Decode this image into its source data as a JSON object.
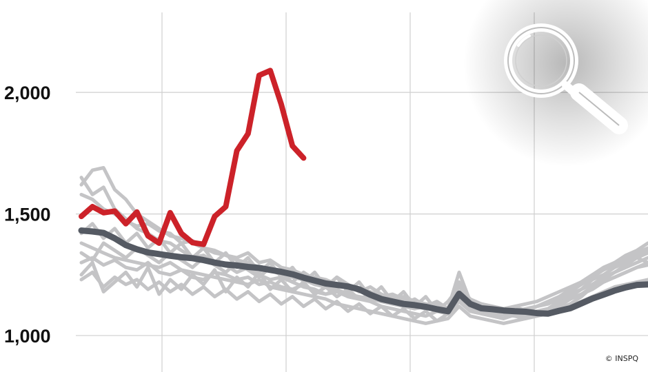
{
  "chart_data": {
    "type": "line",
    "title": "",
    "xlabel": "",
    "ylabel": "",
    "ylim": [
      850,
      2380
    ],
    "yticks": [
      1000,
      1500,
      2000
    ],
    "ytick_labels": [
      "1,000",
      "1,500",
      "2,000"
    ],
    "grid": {
      "horizontal": true,
      "vertical": true
    },
    "x_divisions": 5,
    "x_points": 52,
    "legend": "none",
    "credit": "© INSPQ",
    "icon": "magnifier-icon",
    "colors": {
      "current": "#cc2229",
      "average": "#555a63",
      "history": "#c4c4c6",
      "grid": "#cfcfcf"
    },
    "series": [
      {
        "role": "average",
        "values": [
          1432,
          1428,
          1422,
          1400,
          1372,
          1355,
          1342,
          1335,
          1328,
          1322,
          1318,
          1310,
          1300,
          1292,
          1288,
          1282,
          1278,
          1270,
          1262,
          1252,
          1238,
          1226,
          1214,
          1208,
          1202,
          1190,
          1168,
          1150,
          1140,
          1130,
          1125,
          1118,
          1108,
          1100,
          1172,
          1130,
          1112,
          1108,
          1103,
          1100,
          1098,
          1092,
          1090,
          1102,
          1112,
          1132,
          1152,
          1168,
          1185,
          1198,
          1208,
          1210
        ]
      },
      {
        "role": "current",
        "values": [
          1490,
          1530,
          1505,
          1512,
          1460,
          1508,
          1410,
          1380,
          1505,
          1420,
          1382,
          1375,
          1490,
          1530,
          1760,
          1830,
          2070,
          2090,
          1950,
          1780,
          1730
        ]
      },
      {
        "role": "history",
        "values": [
          1650,
          1580,
          1610,
          1520,
          1480,
          1440,
          1420,
          1390,
          1380,
          1350,
          1320,
          1330,
          1300,
          1290,
          1260,
          1280,
          1250,
          1230,
          1240,
          1220,
          1200,
          1190,
          1170,
          1180,
          1160,
          1150,
          1140,
          1120,
          1110,
          1100,
          1090,
          1080,
          1100,
          1090,
          1160,
          1110,
          1090,
          1080,
          1070,
          1085,
          1090,
          1080,
          1095,
          1110,
          1130,
          1160,
          1200,
          1230,
          1260,
          1290,
          1320,
          1340
        ]
      },
      {
        "role": "history",
        "values": [
          1620,
          1680,
          1690,
          1600,
          1560,
          1500,
          1470,
          1440,
          1410,
          1400,
          1380,
          1360,
          1340,
          1330,
          1310,
          1300,
          1280,
          1270,
          1250,
          1240,
          1230,
          1210,
          1200,
          1190,
          1170,
          1160,
          1150,
          1140,
          1130,
          1120,
          1110,
          1120,
          1100,
          1090,
          1220,
          1120,
          1100,
          1090,
          1085,
          1080,
          1070,
          1090,
          1100,
          1120,
          1150,
          1170,
          1190,
          1220,
          1240,
          1260,
          1280,
          1300
        ]
      },
      {
        "role": "history",
        "values": [
          1580,
          1560,
          1520,
          1500,
          1470,
          1450,
          1460,
          1430,
          1420,
          1380,
          1390,
          1360,
          1350,
          1330,
          1320,
          1340,
          1300,
          1310,
          1280,
          1270,
          1250,
          1240,
          1230,
          1210,
          1200,
          1190,
          1180,
          1160,
          1170,
          1150,
          1140,
          1130,
          1120,
          1110,
          1180,
          1140,
          1120,
          1110,
          1100,
          1095,
          1090,
          1100,
          1110,
          1140,
          1160,
          1190,
          1230,
          1250,
          1280,
          1300,
          1320,
          1300
        ]
      },
      {
        "role": "history",
        "values": [
          1380,
          1360,
          1340,
          1320,
          1310,
          1300,
          1290,
          1280,
          1300,
          1270,
          1260,
          1250,
          1240,
          1230,
          1220,
          1210,
          1230,
          1200,
          1190,
          1180,
          1170,
          1160,
          1150,
          1130,
          1120,
          1110,
          1100,
          1090,
          1080,
          1070,
          1060,
          1050,
          1060,
          1070,
          1120,
          1080,
          1070,
          1060,
          1050,
          1060,
          1070,
          1080,
          1090,
          1100,
          1120,
          1140,
          1160,
          1180,
          1200,
          1210,
          1220,
          1230
        ]
      },
      {
        "role": "history",
        "values": [
          1300,
          1320,
          1290,
          1310,
          1280,
          1270,
          1300,
          1260,
          1250,
          1270,
          1240,
          1230,
          1260,
          1250,
          1230,
          1240,
          1210,
          1220,
          1200,
          1190,
          1210,
          1180,
          1170,
          1190,
          1160,
          1150,
          1170,
          1140,
          1130,
          1150,
          1120,
          1110,
          1130,
          1100,
          1150,
          1120,
          1110,
          1100,
          1090,
          1110,
          1100,
          1120,
          1130,
          1150,
          1170,
          1190,
          1210,
          1240,
          1260,
          1280,
          1300,
          1320
        ]
      },
      {
        "role": "history",
        "values": [
          1250,
          1300,
          1180,
          1220,
          1260,
          1200,
          1280,
          1170,
          1230,
          1190,
          1250,
          1210,
          1270,
          1180,
          1240,
          1200,
          1260,
          1190,
          1230,
          1180,
          1220,
          1170,
          1200,
          1160,
          1190,
          1150,
          1170,
          1140,
          1160,
          1130,
          1150,
          1120,
          1140,
          1110,
          1210,
          1130,
          1120,
          1110,
          1100,
          1115,
          1105,
          1120,
          1130,
          1150,
          1180,
          1210,
          1240,
          1270,
          1290,
          1310,
          1330,
          1350
        ]
      },
      {
        "role": "history",
        "values": [
          1340,
          1310,
          1380,
          1350,
          1320,
          1360,
          1330,
          1300,
          1340,
          1310,
          1280,
          1320,
          1290,
          1260,
          1300,
          1270,
          1240,
          1280,
          1250,
          1220,
          1260,
          1230,
          1200,
          1240,
          1210,
          1180,
          1200,
          1170,
          1150,
          1160,
          1140,
          1130,
          1120,
          1110,
          1260,
          1140,
          1130,
          1120,
          1110,
          1100,
          1110,
          1120,
          1140,
          1160,
          1190,
          1220,
          1250,
          1270,
          1300,
          1320,
          1340,
          1360
        ]
      },
      {
        "role": "history",
        "values": [
          1230,
          1260,
          1200,
          1240,
          1210,
          1230,
          1190,
          1220,
          1180,
          1210,
          1170,
          1200,
          1160,
          1190,
          1150,
          1180,
          1140,
          1170,
          1130,
          1160,
          1120,
          1150,
          1110,
          1140,
          1100,
          1130,
          1090,
          1120,
          1080,
          1110,
          1070,
          1100,
          1060,
          1090,
          1140,
          1100,
          1090,
          1080,
          1070,
          1090,
          1080,
          1100,
          1110,
          1130,
          1150,
          1170,
          1200,
          1220,
          1240,
          1260,
          1280,
          1290
        ]
      },
      {
        "role": "history",
        "values": [
          1420,
          1460,
          1400,
          1440,
          1380,
          1420,
          1360,
          1400,
          1340,
          1380,
          1320,
          1360,
          1300,
          1340,
          1280,
          1320,
          1260,
          1300,
          1240,
          1280,
          1220,
          1260,
          1200,
          1240,
          1180,
          1220,
          1160,
          1200,
          1140,
          1180,
          1120,
          1160,
          1100,
          1140,
          1200,
          1150,
          1130,
          1120,
          1110,
          1120,
          1130,
          1140,
          1160,
          1180,
          1200,
          1220,
          1250,
          1280,
          1300,
          1330,
          1350,
          1380
        ]
      }
    ]
  }
}
